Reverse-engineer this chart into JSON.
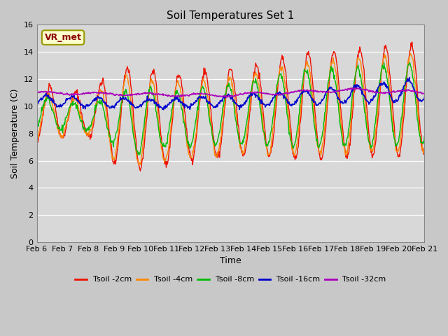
{
  "title": "Soil Temperatures Set 1",
  "xlabel": "Time",
  "ylabel": "Soil Temperature (C)",
  "ylim": [
    0,
    16
  ],
  "yticks": [
    0,
    2,
    4,
    6,
    8,
    10,
    12,
    14,
    16
  ],
  "fig_bg": "#c8c8c8",
  "axes_bg": "#d8d8d8",
  "annotation_text": "VR_met",
  "annotation_color": "#8b0000",
  "annotation_bg": "#ffffcc",
  "annotation_border": "#999900",
  "series_colors": {
    "Tsoil -2cm": "#ee1100",
    "Tsoil -4cm": "#ff8800",
    "Tsoil -8cm": "#00bb00",
    "Tsoil -16cm": "#0000cc",
    "Tsoil -32cm": "#aa00bb"
  },
  "x_ticks": [
    "Feb 6",
    "Feb 7",
    "Feb 8",
    "Feb 9",
    "Feb 10",
    "Feb 11",
    "Feb 12",
    "Feb 13",
    "Feb 14",
    "Feb 15",
    "Feb 16",
    "Feb 17",
    "Feb 18",
    "Feb 19",
    "Feb 20",
    "Feb 21"
  ],
  "grid_color": "#ffffff",
  "figsize": [
    6.4,
    4.8
  ],
  "dpi": 100
}
